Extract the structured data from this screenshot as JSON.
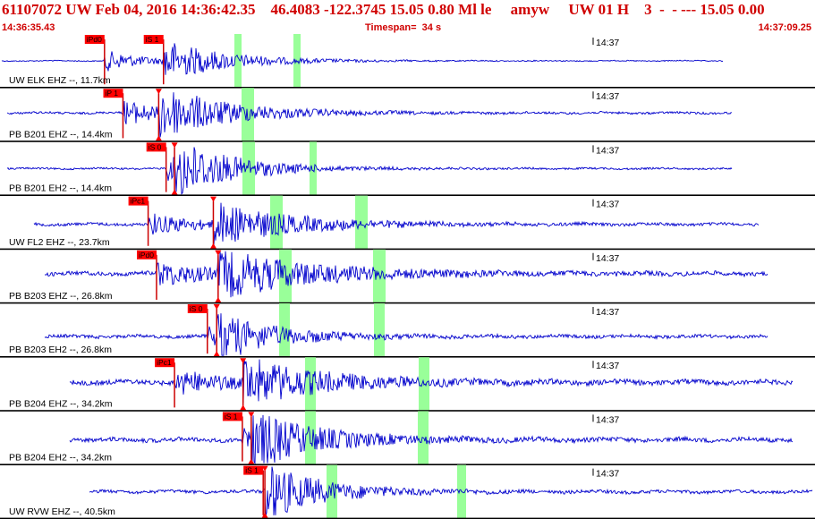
{
  "header": {
    "title": "61107072 UW Feb 04, 2016 14:36:42.35    46.4083 -122.3745 15.05 0.80 Ml le     amyw     UW 01 H    3  -  - --- 15.05 0.00",
    "start_time": "14:36:35.43",
    "timespan": "Timespan=  34 s",
    "end_time": "14:37:09.25"
  },
  "colors": {
    "title": "#d00000",
    "trace": "#0000cc",
    "pick_box": "#ff0000",
    "pick_line": "#cc0000",
    "window": "#99ff99",
    "separator": "#000000"
  },
  "panels": [
    {
      "station": "UW ELK EHZ --, 11.7km",
      "time_label": "14:37",
      "picks": [
        {
          "label": "iPd0",
          "t": 4.36
        },
        {
          "label": "iS 1",
          "t": 6.82
        }
      ]
    },
    {
      "station": "PB B201 EHZ --, 14.4km",
      "time_label": "14:37",
      "picks": [
        {
          "label": "iP 1",
          "t": 5.13
        },
        {
          "label": "",
          "t": 6.62
        }
      ]
    },
    {
      "station": "PB B201 EH2 --, 14.4km",
      "time_label": "14:37",
      "picks": [
        {
          "label": "iS 0",
          "t": 6.93
        },
        {
          "label": "",
          "t": 7.28
        }
      ]
    },
    {
      "station": "UW FL2 EHZ --, 23.7km",
      "time_label": "14:37",
      "picks": [
        {
          "label": "iPc1",
          "t": 6.18
        },
        {
          "label": "",
          "t": 8.9
        }
      ]
    },
    {
      "station": "PB B203 EHZ --, 26.8km",
      "time_label": "14:37",
      "picks": [
        {
          "label": "iPd0",
          "t": 6.53
        },
        {
          "label": "",
          "t": 9.1
        }
      ]
    },
    {
      "station": "PB B203 EH2 --, 26.8km",
      "time_label": "14:37",
      "picks": [
        {
          "label": "iS 0",
          "t": 8.65
        },
        {
          "label": "",
          "t": 9.04
        }
      ]
    },
    {
      "station": "PB B204 EHZ --, 34.2km",
      "time_label": "14:37",
      "picks": [
        {
          "label": "iPc1",
          "t": 7.28
        },
        {
          "label": "",
          "t": 10.14
        }
      ]
    },
    {
      "station": "PB B204 EH2 --, 34.2km",
      "time_label": "14:37",
      "picks": [
        {
          "label": "iS 1",
          "t": 10.11
        },
        {
          "label": "",
          "t": 10.48
        }
      ]
    },
    {
      "station": "UW RVW EHZ --, 40.5km",
      "time_label": "14:37",
      "picks": [
        {
          "label": "iS 1",
          "t": 10.98
        },
        {
          "label": "",
          "t": 11.05
        }
      ]
    }
  ]
}
